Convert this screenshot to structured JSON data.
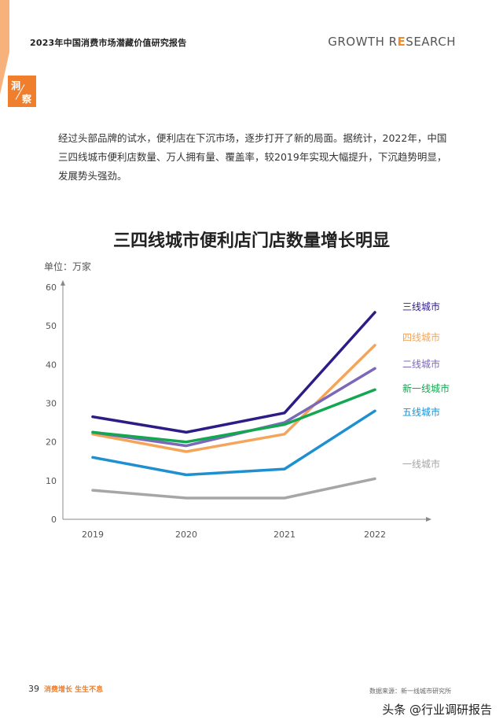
{
  "header": {
    "report_title": "2023年中国消费市场潜藏价值研究报告",
    "brand_prefix": "GROWTH R",
    "brand_e": "E",
    "brand_suffix": "SEARCH"
  },
  "logo": {
    "char1": "洞",
    "char2": "察"
  },
  "intro_text": "经过头部品牌的试水，便利店在下沉市场，逐步打开了新的局面。据统计，2022年，中国三四线城市便利店数量、万人拥有量、覆盖率，较2019年实现大幅提升，下沉趋势明显，发展势头强劲。",
  "chart_title": "三四线城市便利店门店数量增长明显",
  "unit_label": "单位：万家",
  "footer": {
    "page_number": "39",
    "tag": "消费增长 生生不息",
    "source": "数据来源：新一线城市研究所",
    "watermark": "头条 @行业调研报告"
  },
  "colors": {
    "accent": "#ef7f2c"
  },
  "chart_data": {
    "type": "line",
    "x": [
      "2019",
      "2020",
      "2021",
      "2022"
    ],
    "ylim": [
      0,
      60
    ],
    "yticks": [
      0,
      10,
      20,
      30,
      40,
      50,
      60
    ],
    "grid": false,
    "legend": "right-of-line-ends",
    "series": [
      {
        "name": "三线城市",
        "color": "#2e1c86",
        "values": [
          26.5,
          22.5,
          27.5,
          53.5
        ]
      },
      {
        "name": "四线城市",
        "color": "#f4a55a",
        "values": [
          22.0,
          17.5,
          22.0,
          45.0
        ]
      },
      {
        "name": "二线城市",
        "color": "#7b68b8",
        "values": [
          22.5,
          19.0,
          25.0,
          39.0
        ]
      },
      {
        "name": "新一线城市",
        "color": "#14a751",
        "values": [
          22.5,
          20.0,
          24.5,
          33.5
        ]
      },
      {
        "name": "五线城市",
        "color": "#1e90d0",
        "values": [
          16.0,
          11.5,
          13.0,
          28.0
        ]
      },
      {
        "name": "一线城市",
        "color": "#a6a6a6",
        "values": [
          7.5,
          5.5,
          5.5,
          10.5
        ]
      }
    ]
  }
}
